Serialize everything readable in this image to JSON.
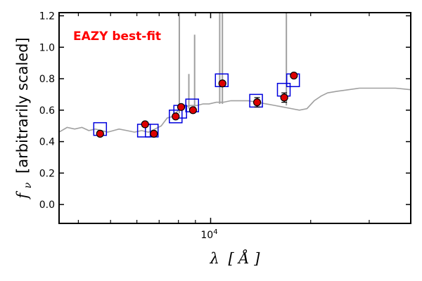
{
  "chart_data": {
    "type": "scatter",
    "xscale": "log",
    "xlim": [
      3500,
      40000
    ],
    "ylim": [
      -0.12,
      1.22
    ],
    "xticks": [
      {
        "value": 10000,
        "base": "10",
        "exp": "4"
      }
    ],
    "yticks": [
      0.0,
      0.2,
      0.4,
      0.6,
      0.8,
      1.0,
      1.2
    ],
    "ytick_labels": [
      "0.0",
      "0.2",
      "0.4",
      "0.6",
      "0.8",
      "1.0",
      "1.2"
    ],
    "xlabel_prefix": "λ",
    "xlabel_unit": "Å",
    "ylabel_symbol": "f",
    "ylabel_sub": "ν",
    "ylabel_text": "[arbitrarily scaled]",
    "annotation": "EAZY best-fit",
    "annotation_color": "#ff0000",
    "grid": false,
    "colors": {
      "template": "#a0a0a0",
      "model_box": "#0000dd",
      "observed_face": "#dd0000",
      "observed_edge": "#000000"
    },
    "series": [
      {
        "kind": "template",
        "x": [
          3500,
          3700,
          3900,
          4100,
          4300,
          4500,
          4700,
          4900,
          5100,
          5300,
          5600,
          5900,
          6200,
          6500,
          6800,
          7100,
          7400,
          7700,
          8000,
          8300,
          8700,
          9100,
          9500,
          9900,
          10400,
          10900,
          11500,
          12200,
          13000,
          13800,
          14700,
          15600,
          16500,
          17500,
          18500,
          19500,
          20500,
          21500,
          22500,
          24000,
          26000,
          28000,
          30000,
          33000,
          36000,
          40000
        ],
        "y": [
          0.46,
          0.49,
          0.48,
          0.49,
          0.47,
          0.48,
          0.47,
          0.46,
          0.47,
          0.48,
          0.47,
          0.46,
          0.47,
          0.46,
          0.48,
          0.5,
          0.55,
          0.56,
          0.6,
          0.62,
          0.63,
          0.63,
          0.64,
          0.64,
          0.65,
          0.65,
          0.66,
          0.66,
          0.66,
          0.65,
          0.64,
          0.63,
          0.62,
          0.61,
          0.6,
          0.61,
          0.66,
          0.69,
          0.71,
          0.72,
          0.73,
          0.74,
          0.74,
          0.74,
          0.74,
          0.73
        ]
      },
      {
        "kind": "emission_lines",
        "lines": [
          {
            "x": 8050,
            "ytop": 1.22,
            "ybase": 0.58
          },
          {
            "x": 8600,
            "ytop": 0.83,
            "ybase": 0.61
          },
          {
            "x": 8950,
            "ytop": 1.08,
            "ybase": 0.62
          },
          {
            "x": 10650,
            "ytop": 1.22,
            "ybase": 0.64
          },
          {
            "x": 10850,
            "ytop": 1.22,
            "ybase": 0.64
          },
          {
            "x": 16900,
            "ytop": 1.22,
            "ybase": 0.63
          }
        ]
      },
      {
        "kind": "model_photometry",
        "x": [
          4650,
          6300,
          6650,
          7850,
          8100,
          8800,
          10800,
          13700,
          16600,
          17700
        ],
        "y": [
          0.48,
          0.47,
          0.47,
          0.56,
          0.59,
          0.63,
          0.79,
          0.66,
          0.73,
          0.79
        ]
      },
      {
        "kind": "observed_photometry",
        "x": [
          4650,
          6350,
          6750,
          7850,
          8150,
          8850,
          10850,
          13800,
          16650,
          17800
        ],
        "y": [
          0.45,
          0.51,
          0.45,
          0.56,
          0.62,
          0.6,
          0.77,
          0.65,
          0.68,
          0.82
        ],
        "yerr": [
          0.01,
          0.01,
          0.01,
          0.01,
          0.01,
          0.015,
          0.01,
          0.03,
          0.03,
          0.01
        ]
      }
    ]
  }
}
